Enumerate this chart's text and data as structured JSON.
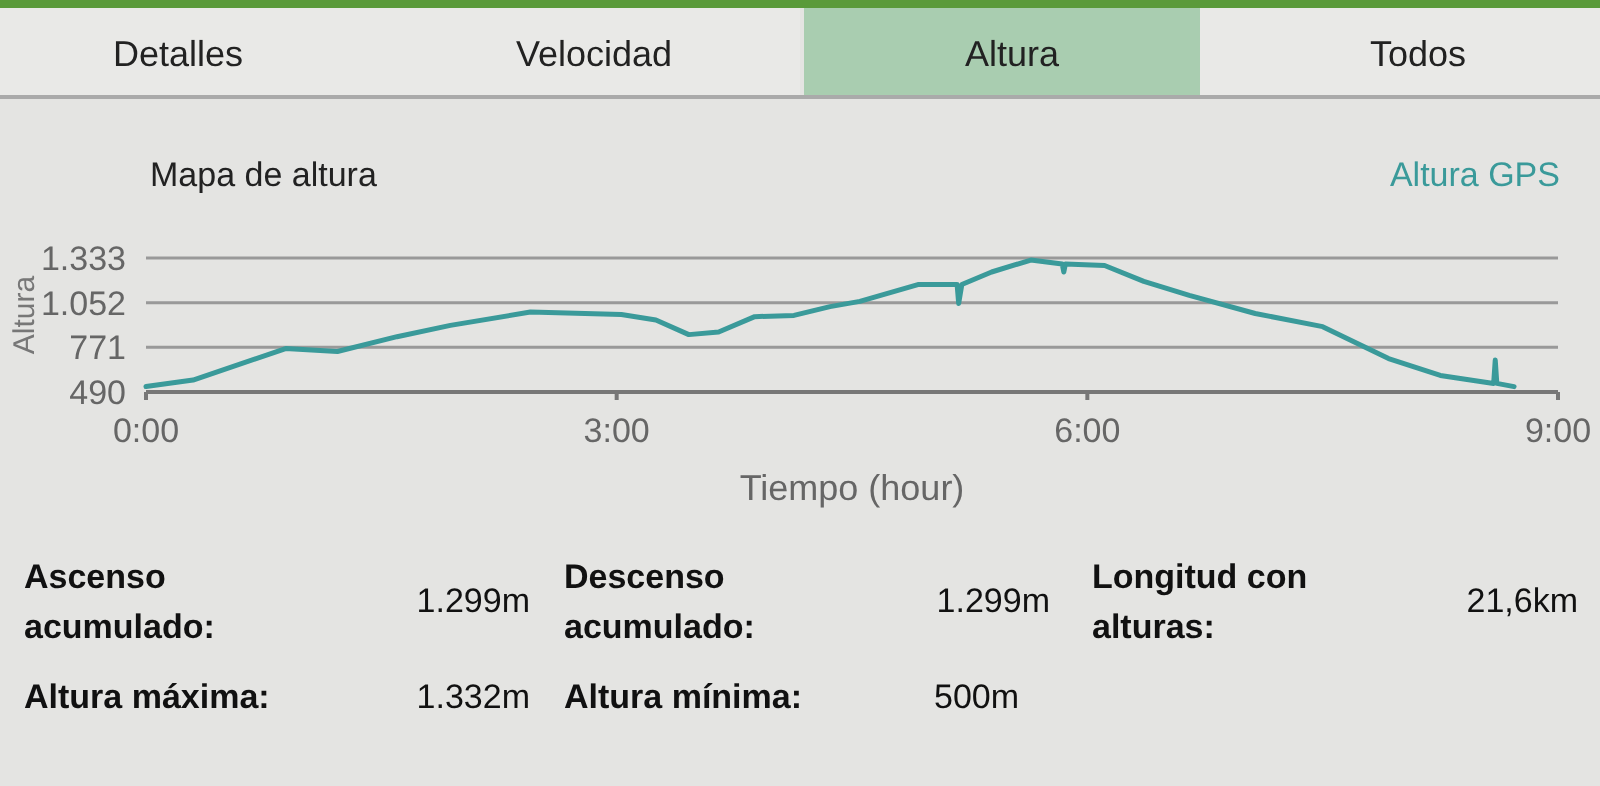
{
  "chart_data": {
    "type": "line",
    "title": "Mapa de altura",
    "xlabel": "Tiempo (hour)",
    "ylabel": "Altura",
    "x": [
      0,
      0.3,
      0.89,
      1.22,
      1.6,
      1.94,
      2.45,
      3.03,
      3.25,
      3.46,
      3.65,
      3.88,
      4.13,
      4.36,
      4.55,
      4.92,
      5.17,
      5.18,
      5.2,
      5.39,
      5.64,
      5.84,
      5.85,
      5.86,
      6.11,
      6.36,
      6.65,
      7.07,
      7.5,
      7.92,
      8.25,
      8.59,
      8.6,
      8.61,
      8.72
    ],
    "series": [
      {
        "name": "Altura GPS",
        "color": "#3a9a9a",
        "values": [
          524,
          565,
          763,
          745,
          838,
          909,
          993,
          977,
          943,
          851,
          867,
          964,
          972,
          1027,
          1060,
          1166,
          1166,
          1047,
          1166,
          1245,
          1320,
          1295,
          1245,
          1295,
          1286,
          1186,
          1098,
          984,
          901,
          700,
          594,
          544,
          691,
          544,
          524
        ]
      }
    ],
    "xlim": [
      0,
      9
    ],
    "xticks": [
      {
        "value": 0,
        "label": "0:00"
      },
      {
        "value": 3,
        "label": "3:00"
      },
      {
        "value": 6,
        "label": "6:00"
      },
      {
        "value": 9,
        "label": "9:00"
      }
    ],
    "ylim": [
      490,
      1333
    ],
    "yticks": [
      490,
      {
        "value": 771,
        "label": "771"
      },
      {
        "value": 1052,
        "label": "1.052"
      },
      {
        "value": 1333,
        "label": "1.333"
      }
    ],
    "grid": "y",
    "legend": "top right",
    "marker": "none",
    "line_style": "solid",
    "annotations": [
      "Detalles",
      "Velocidad",
      "Altura",
      "Todos",
      "Ascenso acumulado:",
      "1.299m",
      "Descenso acumulado:",
      "1.299m",
      "Longitud con alturas:",
      "21,6km",
      "Altura máxima:",
      "1.332m",
      "Altura mínima:",
      "500m"
    ]
  }
}
